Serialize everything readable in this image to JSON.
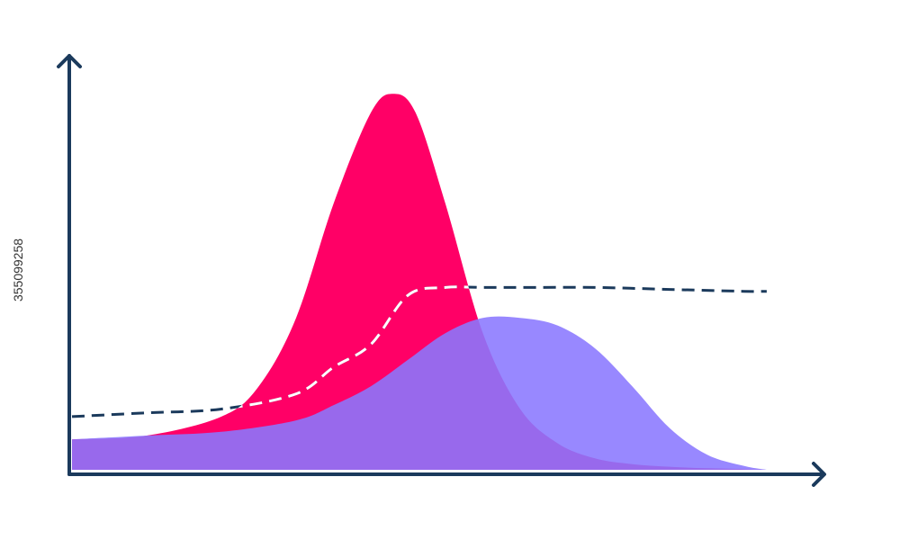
{
  "chart_data": {
    "type": "area",
    "title": "",
    "xlabel": "",
    "ylabel": "",
    "xlim": [
      0,
      100
    ],
    "ylim": [
      0,
      100
    ],
    "grid": false,
    "legend": "none",
    "series": [
      {
        "kind": "area",
        "color": "#ff0066",
        "opacity": 1,
        "x": [
          0,
          10,
          20,
          25,
          30,
          35,
          40,
          43,
          46,
          50,
          55,
          60,
          65,
          70,
          75,
          80,
          85,
          90,
          93
        ],
        "y": [
          8,
          9,
          14,
          22,
          40,
          70,
          94,
          99,
          94,
          70,
          36,
          16,
          7,
          3,
          1.5,
          0.8,
          0.4,
          0.2,
          0
        ]
      },
      {
        "kind": "area",
        "color": "#8a78ff",
        "opacity": 0.88,
        "x": [
          0,
          10,
          20,
          30,
          35,
          40,
          45,
          50,
          55,
          60,
          65,
          70,
          75,
          80,
          85,
          90,
          93
        ],
        "y": [
          8,
          9,
          10,
          13,
          17,
          22,
          29,
          36,
          40,
          40,
          38,
          32,
          22,
          11,
          4,
          1,
          0
        ]
      },
      {
        "kind": "line",
        "dashed": true,
        "color": "#1b3a5c",
        "x": [
          0,
          10,
          20,
          30,
          35,
          40,
          45,
          50,
          55,
          60,
          70,
          80,
          90,
          93
        ],
        "y": [
          14,
          15,
          16,
          20,
          27,
          33,
          46,
          48,
          48,
          48,
          48,
          47.5,
          47,
          47
        ]
      }
    ]
  },
  "colors": {
    "axis": "#1b3a5c",
    "dash_over_fill": "#ffffff"
  },
  "stock_id": "355099258"
}
